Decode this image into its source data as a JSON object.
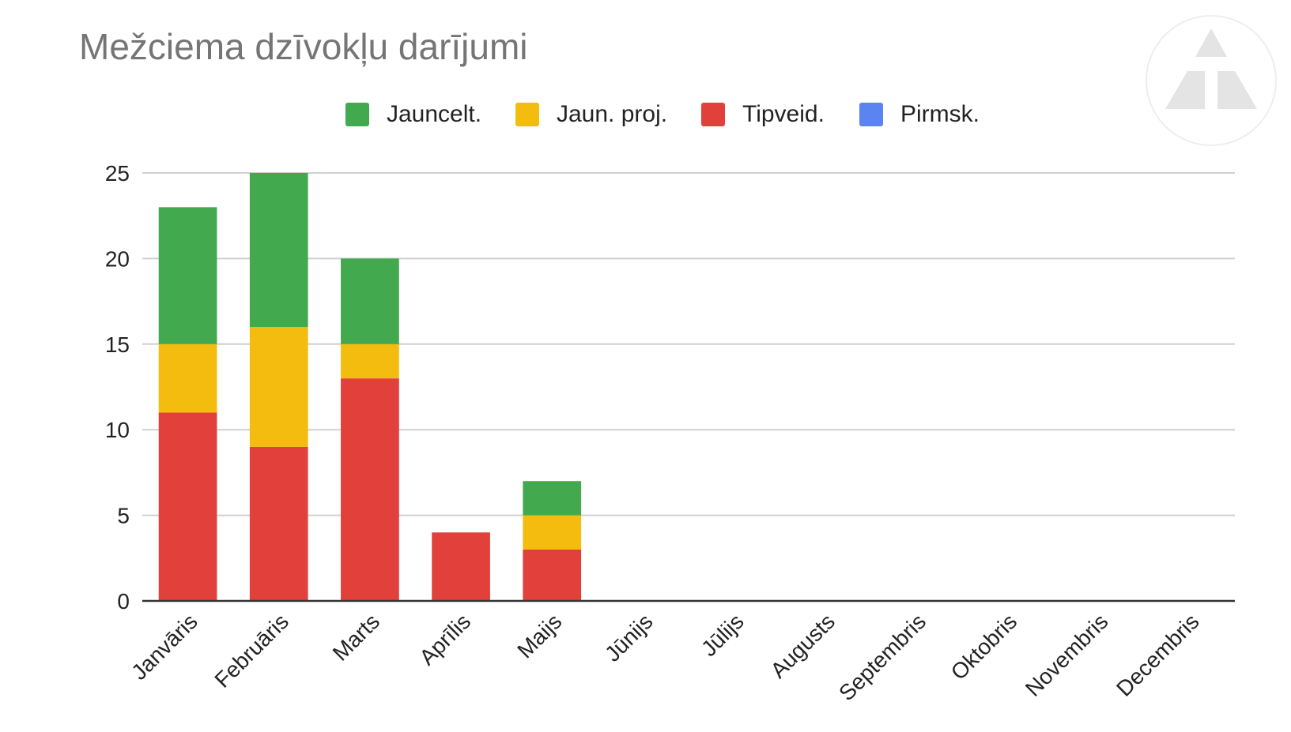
{
  "chart_data": {
    "type": "bar",
    "stacked": true,
    "title": "Mežciema dzīvokļu darījumi",
    "xlabel": "",
    "ylabel": "",
    "ylim": [
      0,
      25
    ],
    "yticks": [
      0,
      5,
      10,
      15,
      20,
      25
    ],
    "grid": true,
    "legend_position": "top",
    "categories": [
      "Janvāris",
      "Februāris",
      "Marts",
      "Aprīlis",
      "Maijs",
      "Jūnijs",
      "Jūlijs",
      "Augusts",
      "Septembris",
      "Oktobris",
      "Novembris",
      "Decembris"
    ],
    "series": [
      {
        "name": "Jauncelt.",
        "color": "#43a94f",
        "values": [
          8,
          9,
          5,
          0,
          2,
          0,
          0,
          0,
          0,
          0,
          0,
          0
        ]
      },
      {
        "name": "Jaun. proj.",
        "color": "#f4bc0e",
        "values": [
          4,
          7,
          2,
          0,
          2,
          0,
          0,
          0,
          0,
          0,
          0,
          0
        ]
      },
      {
        "name": "Tipveid.",
        "color": "#e2403a",
        "values": [
          11,
          9,
          13,
          4,
          3,
          0,
          0,
          0,
          0,
          0,
          0,
          0
        ]
      },
      {
        "name": "Pirmsk.",
        "color": "#5b84f1",
        "values": [
          0,
          0,
          0,
          0,
          0,
          0,
          0,
          0,
          0,
          0,
          0,
          0
        ]
      }
    ],
    "stack_order": [
      "Tipveid.",
      "Jaun. proj.",
      "Jauncelt.",
      "Pirmsk."
    ]
  },
  "logo": {
    "icon": "triangle-logo-icon",
    "color": "#e4e4e4"
  }
}
